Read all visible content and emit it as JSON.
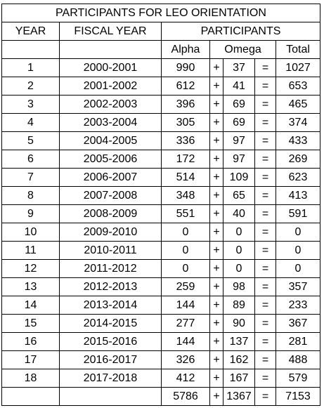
{
  "title": "PARTICIPANTS FOR LEO ORIENTATION",
  "header": {
    "year": "YEAR",
    "fiscal_year": "FISCAL YEAR",
    "participants": "PARTICIPANTS"
  },
  "subheader": {
    "alpha": "Alpha",
    "omega": "Omega",
    "total": "Total"
  },
  "rows": [
    [
      1,
      "2000-2001",
      990,
      "+",
      37,
      "=",
      1027
    ],
    [
      2,
      "2001-2002",
      612,
      "+",
      41,
      "=",
      653
    ],
    [
      3,
      "2002-2003",
      396,
      "+",
      69,
      "=",
      465
    ],
    [
      4,
      "2003-2004",
      305,
      "+",
      69,
      "=",
      374
    ],
    [
      5,
      "2004-2005",
      336,
      "+",
      97,
      "=",
      433
    ],
    [
      6,
      "2005-2006",
      172,
      "+",
      97,
      "=",
      269
    ],
    [
      7,
      "2006-2007",
      514,
      "+",
      109,
      "=",
      623
    ],
    [
      8,
      "2007-2008",
      348,
      "+",
      65,
      "=",
      413
    ],
    [
      9,
      "2008-2009",
      551,
      "+",
      40,
      "=",
      591
    ],
    [
      10,
      "2009-2010",
      0,
      "+",
      0,
      "=",
      0
    ],
    [
      11,
      "2010-2011",
      0,
      "+",
      0,
      "=",
      0
    ],
    [
      12,
      "2011-2012",
      0,
      "+",
      0,
      "=",
      0
    ],
    [
      13,
      "2012-2013",
      259,
      "+",
      98,
      "=",
      357
    ],
    [
      14,
      "2013-2014",
      144,
      "+",
      89,
      "=",
      233
    ],
    [
      15,
      "2014-2015",
      277,
      "+",
      90,
      "=",
      367
    ],
    [
      16,
      "2015-2016",
      144,
      "+",
      137,
      "=",
      281
    ],
    [
      17,
      "2016-2017",
      326,
      "+",
      162,
      "=",
      488
    ],
    [
      18,
      "2017-2018",
      412,
      "+",
      167,
      "=",
      579
    ]
  ],
  "totals": {
    "alpha": 5786,
    "plus": "+",
    "omega": 1367,
    "equals": "=",
    "total": 7153
  }
}
